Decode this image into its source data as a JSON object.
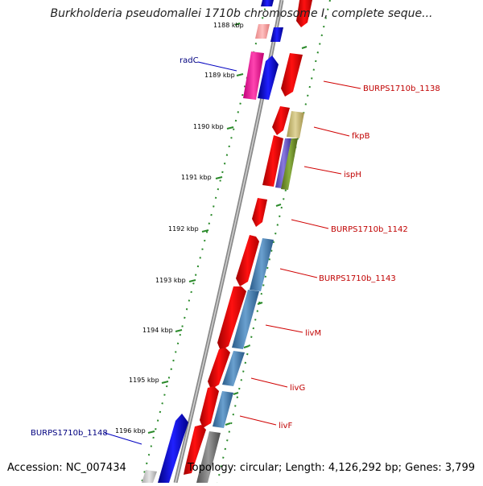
{
  "title": "Burkholderia pseudomallei 1710b chromosome I, complete seque...",
  "accession_text": "Accession: NC_007434",
  "summary_text": "Topology: circular; Length: 4,126,292 bp; Genes: 3,799",
  "colors": {
    "plus_strand": "#0000ff",
    "minus_strand": "#ff0000",
    "backbone": "#888888",
    "ruler_ticks": "#2a8a2a",
    "label_plus": "#00007f",
    "label_minus": "#c00000"
  },
  "ruler_labels": [
    "1188 kbp",
    "1189 kbp",
    "1190 kbp",
    "1191 kbp",
    "1192 kbp",
    "1193 kbp",
    "1194 kbp",
    "1195 kbp",
    "1196 kbp"
  ],
  "gene_labels": {
    "radC": "radC",
    "burps1138": "BURPS1710b_1138",
    "fkpB": "fkpB",
    "ispH": "ispH",
    "burps1142": "BURPS1710b_1142",
    "burps1143": "BURPS1710b_1143",
    "livM": "livM",
    "livG": "livG",
    "livF": "livF",
    "burps1148": "BURPS1710b_1148"
  }
}
